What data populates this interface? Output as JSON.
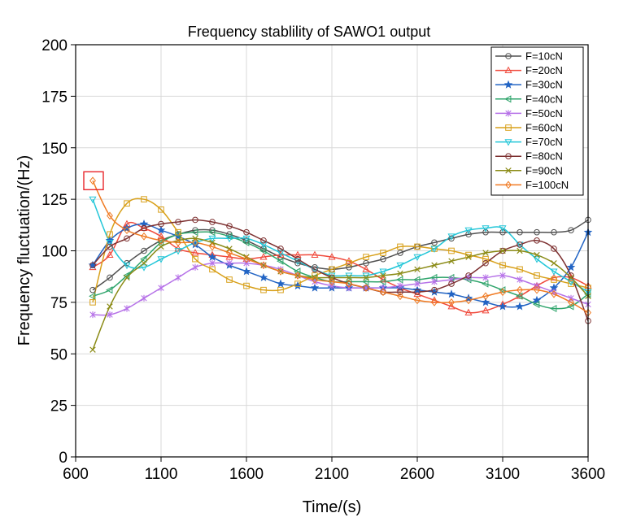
{
  "chart_data": {
    "type": "line",
    "title": "Frequency stablility of SAWO1 output",
    "xlabel": "Time/(s)",
    "ylabel": "Frequency fluctuation/(Hz)",
    "xlim": [
      600,
      3600
    ],
    "ylim": [
      0,
      200
    ],
    "xticks": [
      600,
      1100,
      1600,
      2100,
      2600,
      3100,
      3600
    ],
    "yticks": [
      0,
      25,
      50,
      75,
      100,
      125,
      150,
      175,
      200
    ],
    "grid": true,
    "legend_position": "top-right",
    "x": [
      700,
      800,
      900,
      1000,
      1100,
      1200,
      1300,
      1400,
      1500,
      1600,
      1700,
      1800,
      1900,
      2000,
      2100,
      2200,
      2300,
      2400,
      2500,
      2600,
      2700,
      2800,
      2900,
      3000,
      3100,
      3200,
      3300,
      3400,
      3500,
      3600
    ],
    "highlight": {
      "x": 700,
      "y": 134,
      "color": "#e8262b"
    },
    "series": [
      {
        "name": "F=10cN",
        "color": "#505050",
        "marker": "circle",
        "values": [
          81,
          87,
          94,
          100,
          105,
          108,
          110,
          110,
          108,
          105,
          101,
          97,
          94,
          92,
          91,
          92,
          94,
          96,
          99,
          102,
          104,
          106,
          108,
          109,
          109,
          109,
          109,
          109,
          110,
          115
        ]
      },
      {
        "name": "F=20cN",
        "color": "#f04a3c",
        "marker": "triangle-up",
        "values": [
          92,
          98,
          113,
          111,
          107,
          101,
          99,
          98,
          97,
          96,
          97,
          98,
          98,
          98,
          97,
          95,
          91,
          86,
          82,
          79,
          76,
          73,
          70,
          71,
          74,
          78,
          83,
          87,
          87,
          83
        ]
      },
      {
        "name": "F=30cN",
        "color": "#2264c4",
        "marker": "star",
        "values": [
          93,
          105,
          111,
          113,
          110,
          107,
          103,
          97,
          93,
          90,
          87,
          84,
          83,
          82,
          82,
          82,
          82,
          82,
          82,
          81,
          80,
          79,
          77,
          75,
          73,
          73,
          76,
          82,
          92,
          109
        ]
      },
      {
        "name": "F=40cN",
        "color": "#2ea46b",
        "marker": "triangle-left",
        "values": [
          78,
          81,
          88,
          96,
          104,
          108,
          109,
          109,
          107,
          104,
          100,
          95,
          90,
          87,
          85,
          85,
          85,
          85,
          86,
          86,
          87,
          87,
          86,
          84,
          81,
          78,
          74,
          72,
          73,
          79
        ]
      },
      {
        "name": "F=50cN",
        "color": "#b672e8",
        "marker": "asterisk",
        "values": [
          69,
          69,
          72,
          77,
          82,
          87,
          92,
          94,
          94,
          94,
          93,
          91,
          88,
          85,
          83,
          82,
          82,
          82,
          83,
          84,
          85,
          86,
          87,
          87,
          88,
          86,
          83,
          80,
          77,
          74
        ]
      },
      {
        "name": "F=60cN",
        "color": "#d8a01a",
        "marker": "square",
        "values": [
          75,
          108,
          123,
          125,
          120,
          109,
          96,
          91,
          86,
          83,
          81,
          81,
          84,
          88,
          91,
          94,
          97,
          99,
          102,
          102,
          101,
          100,
          98,
          96,
          93,
          91,
          88,
          86,
          84,
          82
        ]
      },
      {
        "name": "F=70cN",
        "color": "#22c6d8",
        "marker": "triangle-down",
        "values": [
          125,
          104,
          93,
          92,
          96,
          100,
          104,
          106,
          106,
          106,
          103,
          99,
          95,
          91,
          88,
          88,
          88,
          90,
          93,
          97,
          101,
          107,
          110,
          111,
          111,
          103,
          96,
          90,
          85,
          80
        ]
      },
      {
        "name": "F=80cN",
        "color": "#7d3030",
        "marker": "circle",
        "values": [
          93,
          102,
          106,
          111,
          113,
          114,
          115,
          114,
          112,
          109,
          105,
          101,
          96,
          91,
          87,
          84,
          82,
          80,
          80,
          80,
          81,
          84,
          88,
          94,
          100,
          103,
          105,
          101,
          88,
          66
        ]
      },
      {
        "name": "F=90cN",
        "color": "#8a8a14",
        "marker": "x",
        "values": [
          52,
          73,
          87,
          94,
          102,
          105,
          106,
          104,
          101,
          97,
          93,
          90,
          88,
          87,
          87,
          87,
          87,
          88,
          89,
          91,
          93,
          95,
          97,
          99,
          100,
          100,
          98,
          94,
          87,
          78
        ]
      },
      {
        "name": "F=100cN",
        "color": "#f07a22",
        "marker": "diamond",
        "values": [
          134,
          117,
          110,
          107,
          105,
          104,
          104,
          102,
          99,
          96,
          93,
          90,
          88,
          86,
          85,
          84,
          82,
          80,
          78,
          76,
          75,
          75,
          76,
          78,
          80,
          81,
          81,
          79,
          75,
          70
        ]
      }
    ]
  }
}
